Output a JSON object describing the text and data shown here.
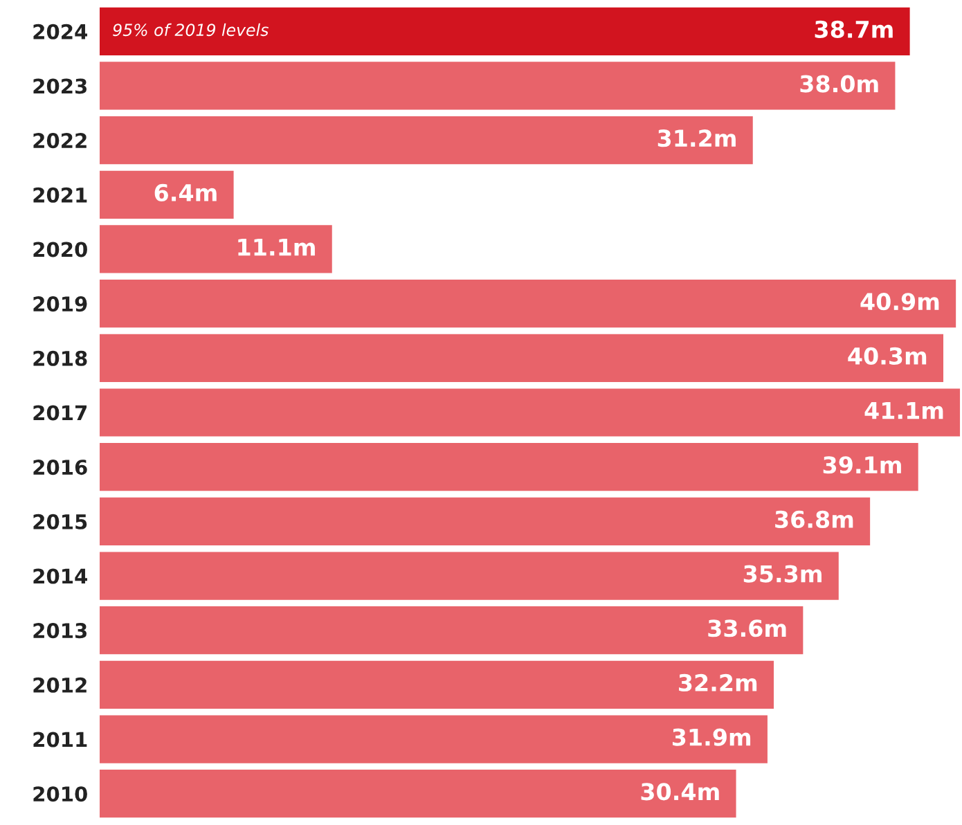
{
  "chart_data": {
    "type": "bar",
    "orientation": "horizontal",
    "categories": [
      "2024",
      "2023",
      "2022",
      "2021",
      "2020",
      "2019",
      "2018",
      "2017",
      "2016",
      "2015",
      "2014",
      "2013",
      "2012",
      "2011",
      "2010"
    ],
    "values": [
      38.7,
      38.0,
      31.2,
      6.4,
      11.1,
      40.9,
      40.3,
      41.1,
      39.1,
      36.8,
      35.3,
      33.6,
      32.2,
      31.9,
      30.4
    ],
    "colors": [
      "#d2141f",
      "#e8636a",
      "#e8636a",
      "#e8636a",
      "#e8636a",
      "#e8636a",
      "#e8636a",
      "#e8636a",
      "#e8636a",
      "#e8636a",
      "#e8636a",
      "#e8636a",
      "#e8636a",
      "#e8636a",
      "#e8636a"
    ],
    "value_labels": [
      "38.7m",
      "38.0m",
      "31.2m",
      "6.4m",
      "11.1m",
      "40.9m",
      "40.3m",
      "41.1m",
      "39.1m",
      "36.8m",
      "35.3m",
      "33.6m",
      "32.2m",
      "31.9m",
      "30.4m"
    ],
    "annotations": [
      {
        "text": "95% of 2019 levels",
        "x": 0,
        "y": "2024"
      }
    ],
    "tick_labels": "y",
    "grid": false,
    "legend": false
  }
}
